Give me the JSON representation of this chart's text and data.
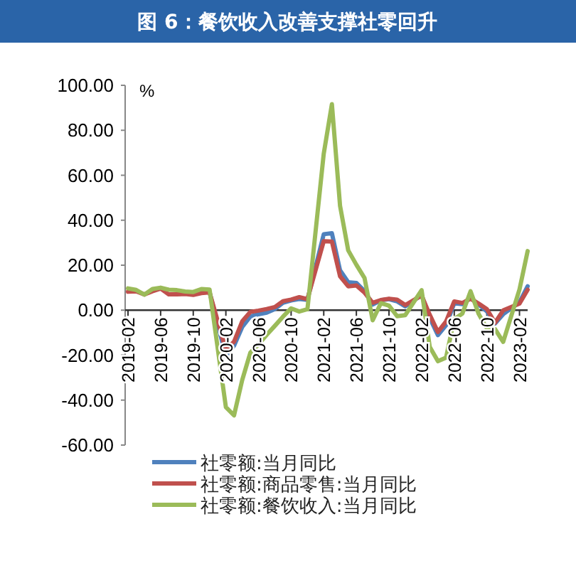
{
  "chart_data": {
    "type": "line",
    "title": "图 6：餐饮收入改善支撑社零回升",
    "x": [
      "2019-02",
      "2019-03",
      "2019-04",
      "2019-05",
      "2019-06",
      "2019-07",
      "2019-08",
      "2019-09",
      "2019-10",
      "2019-11",
      "2019-12",
      "2020-02",
      "2020-03",
      "2020-04",
      "2020-05",
      "2020-06",
      "2020-07",
      "2020-08",
      "2020-09",
      "2020-10",
      "2020-11",
      "2020-12",
      "2021-02",
      "2021-03",
      "2021-04",
      "2021-05",
      "2021-06",
      "2021-07",
      "2021-08",
      "2021-09",
      "2021-10",
      "2021-11",
      "2021-12",
      "2022-02",
      "2022-03",
      "2022-04",
      "2022-05",
      "2022-06",
      "2022-07",
      "2022-08",
      "2022-09",
      "2022-10",
      "2022-11",
      "2022-12",
      "2023-02",
      "2023-03"
    ],
    "series": [
      {
        "name": "社零额:当月同比",
        "color": "#4f81bd",
        "values": [
          null,
          null,
          null,
          null,
          null,
          null,
          null,
          null,
          null,
          8.0,
          8.0,
          -20.5,
          -15.8,
          -7.5,
          -2.8,
          -1.8,
          -1.1,
          0.5,
          3.3,
          4.3,
          5.0,
          4.6,
          33.8,
          34.2,
          17.7,
          12.4,
          12.1,
          8.5,
          2.5,
          4.4,
          4.9,
          3.9,
          1.7,
          6.7,
          -3.5,
          -11.1,
          -6.7,
          3.1,
          2.7,
          5.4,
          2.5,
          -0.5,
          -5.9,
          -1.8,
          3.5,
          10.6
        ]
      },
      {
        "name": "社零额:商品零售:当月同比",
        "color": "#c0504d",
        "values": [
          8.2,
          8.4,
          7.0,
          8.4,
          9.6,
          7.0,
          7.0,
          7.2,
          6.8,
          7.6,
          7.9,
          -17.6,
          -14.0,
          -5.0,
          -0.8,
          -0.2,
          0.5,
          1.4,
          4.0,
          4.7,
          5.8,
          4.9,
          30.7,
          30.5,
          15.1,
          10.6,
          11.0,
          7.8,
          3.3,
          4.5,
          5.1,
          4.7,
          2.3,
          6.5,
          -2.1,
          -9.7,
          -5.0,
          3.9,
          3.2,
          5.1,
          2.9,
          0.5,
          -5.6,
          -0.1,
          2.9,
          9.1
        ]
      },
      {
        "name": "社零额:餐饮收入:当月同比",
        "color": "#9bbb59",
        "values": [
          9.7,
          9.0,
          6.9,
          9.4,
          10.0,
          9.1,
          8.9,
          8.3,
          8.1,
          9.4,
          9.2,
          -43.1,
          -46.8,
          -31.1,
          -18.9,
          -15.2,
          -11.0,
          -7.0,
          -2.9,
          0.8,
          -0.6,
          0.4,
          69.6,
          91.6,
          46.4,
          26.6,
          20.2,
          14.3,
          -4.5,
          3.1,
          2.0,
          -2.7,
          -2.2,
          8.9,
          -16.4,
          -22.7,
          -21.1,
          -4.0,
          -1.5,
          8.4,
          -1.7,
          -8.1,
          -8.4,
          -14.1,
          9.2,
          26.3
        ]
      }
    ],
    "xlim": [
      "2019-02",
      "2023-03"
    ],
    "xticks": [
      "2019-02",
      "2019-06",
      "2019-10",
      "2020-02",
      "2020-06",
      "2020-10",
      "2021-02",
      "2021-06",
      "2021-10",
      "2022-02",
      "2022-06",
      "2022-10",
      "2023-02"
    ],
    "ylim": [
      -60,
      100
    ],
    "yticks": [
      {
        "value": 100,
        "label": "100.00"
      },
      {
        "value": 80,
        "label": "80.00"
      },
      {
        "value": 60,
        "label": "60.00"
      },
      {
        "value": 40,
        "label": "40.00"
      },
      {
        "value": 20,
        "label": "20.00"
      },
      {
        "value": 0,
        "label": "0.00"
      },
      {
        "value": -20,
        "label": "-20.00"
      },
      {
        "value": -40,
        "label": "-40.00"
      },
      {
        "value": -60,
        "label": "-60.00"
      }
    ],
    "legend": "bottom",
    "annotations": [
      "%"
    ]
  }
}
